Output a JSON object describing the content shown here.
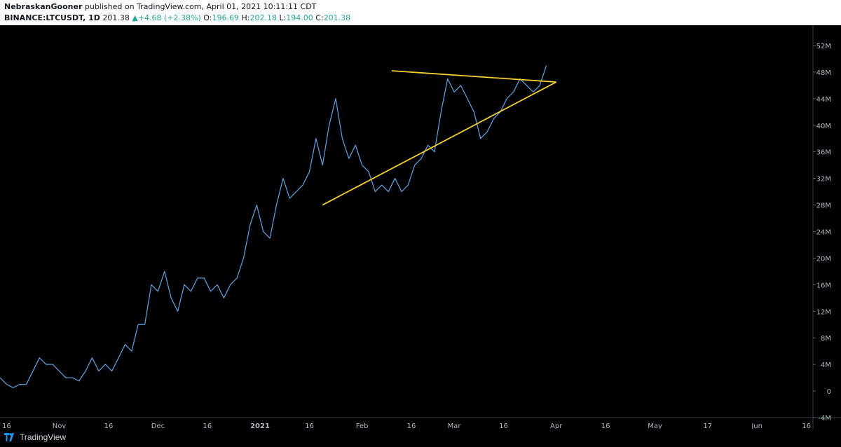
{
  "header": {
    "author": "NebraskanGooner",
    "published_text": "published on TradingView.com, April 01, 2021 10:11:11 CDT",
    "symbol": "BINANCE:LTCUSDT, 1D",
    "last": "201.38",
    "change": "+4.68 (+2.38%)",
    "open_label": "O:",
    "open": "196.69",
    "high_label": "H:",
    "high": "202.18",
    "low_label": "L:",
    "low": "194.00",
    "close_label": "C:",
    "close": "201.38"
  },
  "footer": {
    "brand": "TradingView"
  },
  "colors": {
    "line": "#5b9bd5",
    "triangle": "#f5d130",
    "up": "#26a69a"
  },
  "chart_data": {
    "type": "line",
    "title": "",
    "xlabel": "",
    "ylabel": "",
    "ylim": [
      -4,
      54
    ],
    "y_ticks": [
      "52M",
      "48M",
      "44M",
      "40M",
      "36M",
      "32M",
      "28M",
      "24M",
      "20M",
      "16M",
      "12M",
      "8M",
      "4M",
      "0",
      "-4M"
    ],
    "y_tick_values": [
      52,
      48,
      44,
      40,
      36,
      32,
      28,
      24,
      20,
      16,
      12,
      8,
      4,
      0,
      -4
    ],
    "x_ticks": [
      "16",
      "Nov",
      "16",
      "Dec",
      "16",
      "2021",
      "16",
      "Feb",
      "16",
      "Mar",
      "16",
      "Apr",
      "16",
      "May",
      "17",
      "Jun",
      "16"
    ],
    "x_tick_days": [
      0,
      16,
      31,
      46,
      61,
      77,
      92,
      108,
      123,
      136,
      151,
      167,
      182,
      197,
      213,
      228,
      243
    ],
    "x_range": [
      -2,
      245
    ],
    "series": [
      {
        "x": [
          -2,
          0,
          2,
          4,
          6,
          8,
          10,
          12,
          14,
          16,
          18,
          20,
          22,
          24,
          26,
          28,
          30,
          32,
          34,
          36,
          38,
          40,
          42,
          44,
          46,
          48,
          50,
          52,
          54,
          56,
          58,
          60,
          62,
          64,
          66,
          68,
          70,
          72,
          74,
          76,
          78,
          80,
          82,
          84,
          86,
          88,
          90,
          92,
          94,
          96,
          98,
          100,
          102,
          104,
          106,
          108,
          110,
          112,
          114,
          116,
          118,
          120,
          122,
          124,
          126,
          128,
          130,
          132,
          134,
          136,
          138,
          140,
          142,
          144,
          146,
          148,
          150,
          152,
          154,
          156,
          158,
          160,
          162,
          164
        ],
        "y": [
          2,
          1,
          0.5,
          1,
          1,
          3,
          5,
          4,
          4,
          3,
          2,
          2,
          1.5,
          3,
          5,
          3,
          4,
          3,
          5,
          7,
          6,
          10,
          10,
          16,
          15,
          18,
          14,
          12,
          16,
          15,
          17,
          17,
          15,
          16,
          14,
          16,
          17,
          20,
          25,
          28,
          24,
          23,
          28,
          32,
          29,
          30,
          31,
          33,
          38,
          34,
          40,
          44,
          38,
          35,
          37,
          34,
          33,
          30,
          31,
          30,
          32,
          30,
          31,
          34,
          35,
          37,
          36,
          42,
          47,
          45,
          46,
          44,
          42,
          38,
          39,
          41,
          42,
          44,
          45,
          47,
          46,
          45,
          46,
          49
        ]
      }
    ],
    "trendlines": [
      {
        "from": [
          96,
          28
        ],
        "to": [
          167,
          46.5
        ]
      },
      {
        "from": [
          117,
          48.2
        ],
        "to": [
          167,
          46.5
        ]
      }
    ]
  }
}
